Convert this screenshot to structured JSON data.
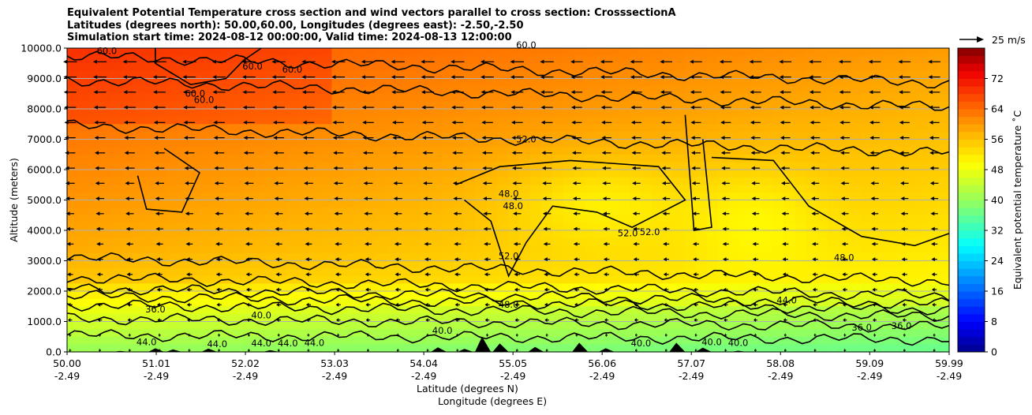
{
  "title_lines": [
    "Equivalent Potential Temperature cross section and wind vectors parallel to cross section: CrosssectionA",
    "Latitudes (degrees north): 50.00,60.00, Longitudes (degrees east): -2.50,-2.50",
    "Simulation start time: 2024-08-12 00:00:00, Valid time: 2024-08-13 12:00:00"
  ],
  "chart_data": {
    "type": "heatmap",
    "xlabel": "Latitude (degrees N)",
    "xlabel2": "Longitude (degrees E)",
    "ylabel": "Altitude (meters)",
    "colorbar_label": "Equivalent potential temperature ˚C",
    "wind_key_label": "25 m/s",
    "x_ticks": [
      {
        "lat": "50.00",
        "lon": "-2.49"
      },
      {
        "lat": "51.01",
        "lon": "-2.49"
      },
      {
        "lat": "52.02",
        "lon": "-2.49"
      },
      {
        "lat": "53.03",
        "lon": "-2.49"
      },
      {
        "lat": "54.04",
        "lon": "-2.49"
      },
      {
        "lat": "55.05",
        "lon": "-2.49"
      },
      {
        "lat": "56.06",
        "lon": "-2.49"
      },
      {
        "lat": "57.07",
        "lon": "-2.49"
      },
      {
        "lat": "58.08",
        "lon": "-2.49"
      },
      {
        "lat": "59.09",
        "lon": "-2.49"
      },
      {
        "lat": "59.99",
        "lon": "-2.49"
      }
    ],
    "y_ticks": [
      "0.0",
      "1000.0",
      "2000.0",
      "3000.0",
      "4000.0",
      "5000.0",
      "6000.0",
      "7000.0",
      "8000.0",
      "9000.0",
      "10000.0"
    ],
    "ylim": [
      0,
      10000
    ],
    "grid": "horizontal",
    "colorbar_ticks": [
      "0",
      "8",
      "16",
      "24",
      "32",
      "40",
      "48",
      "56",
      "64",
      "72"
    ],
    "colorbar_range": [
      0,
      80
    ],
    "contour_labels": [
      {
        "text": "60.0",
        "lat": 50.45,
        "alt": 9800
      },
      {
        "text": "60.0",
        "lat": 51.45,
        "alt": 8400
      },
      {
        "text": "60.0",
        "lat": 51.55,
        "alt": 8200
      },
      {
        "text": "60.0",
        "lat": 52.1,
        "alt": 9300
      },
      {
        "text": "60.0",
        "lat": 52.55,
        "alt": 9200
      },
      {
        "text": "52.0",
        "lat": 55.2,
        "alt": 6900
      },
      {
        "text": "48.0",
        "lat": 55.0,
        "alt": 5100
      },
      {
        "text": "48.0",
        "lat": 55.05,
        "alt": 4700
      },
      {
        "text": "52.0",
        "lat": 55.0,
        "alt": 3050
      },
      {
        "text": "52.0",
        "lat": 56.35,
        "alt": 3800
      },
      {
        "text": "52.0",
        "lat": 56.6,
        "alt": 3850
      },
      {
        "text": "48.0",
        "lat": 55.0,
        "alt": 1450
      },
      {
        "text": "48.0",
        "lat": 58.8,
        "alt": 3000
      },
      {
        "text": "44.0",
        "lat": 58.15,
        "alt": 1600
      },
      {
        "text": "40.0",
        "lat": 52.2,
        "alt": 1100
      },
      {
        "text": "36.0",
        "lat": 51.0,
        "alt": 1300
      },
      {
        "text": "44.0",
        "lat": 50.9,
        "alt": 220
      },
      {
        "text": "44.0",
        "lat": 51.7,
        "alt": 150
      },
      {
        "text": "44.0",
        "lat": 52.2,
        "alt": 180
      },
      {
        "text": "44.0",
        "lat": 52.5,
        "alt": 180
      },
      {
        "text": "44.0",
        "lat": 52.8,
        "alt": 200
      },
      {
        "text": "40.0",
        "lat": 54.25,
        "alt": 600
      },
      {
        "text": "40.0",
        "lat": 56.5,
        "alt": 180
      },
      {
        "text": "40.0",
        "lat": 57.3,
        "alt": 220
      },
      {
        "text": "40.0",
        "lat": 57.6,
        "alt": 200
      },
      {
        "text": "36.0",
        "lat": 59.0,
        "alt": 700
      },
      {
        "text": "36.0",
        "lat": 59.45,
        "alt": 750
      },
      {
        "text": "60.0",
        "lat": 55.2,
        "alt": 10000
      }
    ]
  },
  "colors": {
    "contour": "#000000",
    "terrain": "#000000",
    "grid": "#b0b0b0"
  }
}
